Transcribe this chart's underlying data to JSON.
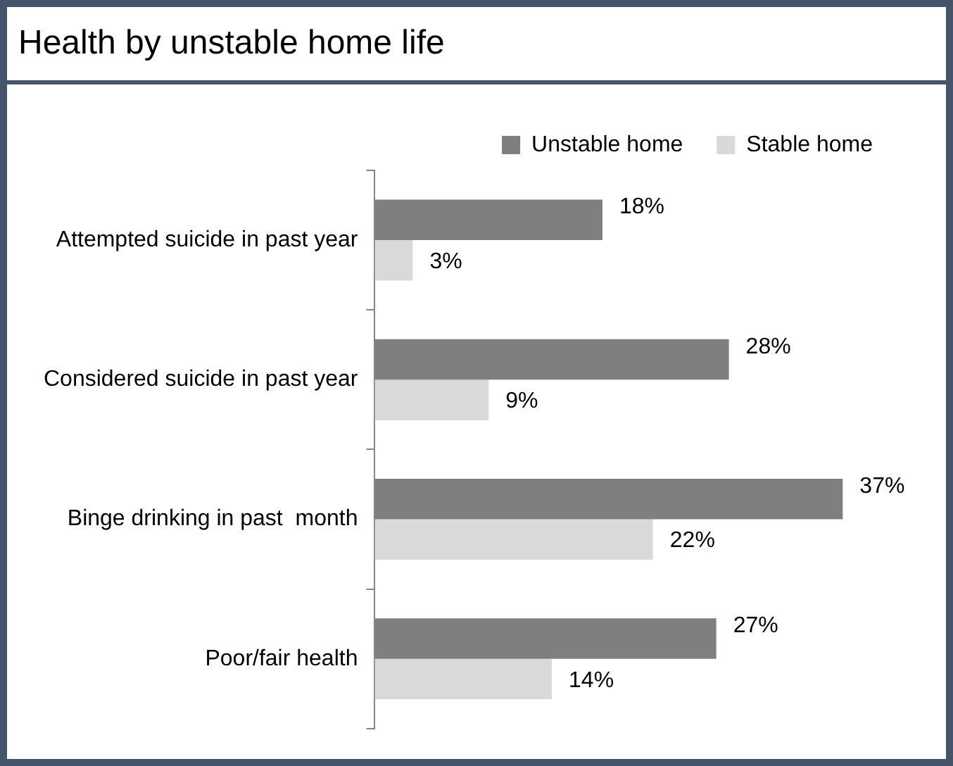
{
  "chart_data": {
    "type": "bar",
    "orientation": "horizontal",
    "title": "Health by unstable home life",
    "categories": [
      "Attempted suicide in past year",
      "Considered suicide in past year",
      "Binge drinking in past  month",
      "Poor/fair health"
    ],
    "series": [
      {
        "name": "Unstable home",
        "color": "#7f7f7f",
        "values": [
          18,
          28,
          37,
          27
        ],
        "value_labels": [
          "18%",
          "28%",
          "37%",
          "27%"
        ]
      },
      {
        "name": "Stable home",
        "color": "#d9d9d9",
        "values": [
          3,
          9,
          22,
          14
        ],
        "value_labels": [
          "3%",
          "9%",
          "22%",
          "14%"
        ]
      }
    ],
    "legend": "top right"
  }
}
